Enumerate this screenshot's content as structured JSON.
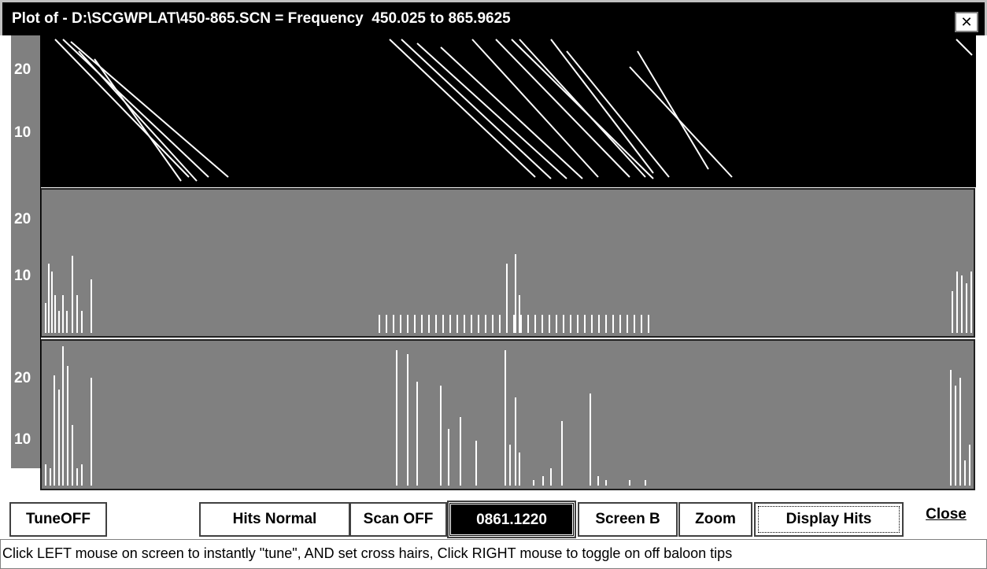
{
  "title_bar": {
    "title": "Plot of - D:\\SCGWPLAT\\450-865.SCN = Frequency  450.025 to 865.9625",
    "close": "✕"
  },
  "panels": [
    {
      "y_labels": [
        "20",
        "10"
      ]
    },
    {
      "y_labels": [
        "20",
        "10"
      ]
    },
    {
      "y_labels": [
        "20",
        "10"
      ]
    }
  ],
  "buttons": {
    "tune": "TuneOFF",
    "hits_normal": "Hits Normal",
    "scan": "Scan OFF",
    "frequency": "0861.1220",
    "screen": "Screen B",
    "zoom": "Zoom",
    "display_hits": "Display Hits",
    "close": "Close"
  },
  "status_bar": "Click LEFT mouse on screen to instantly \"tune\", AND set cross hairs, Click RIGHT mouse to toggle on off baloon tips"
}
